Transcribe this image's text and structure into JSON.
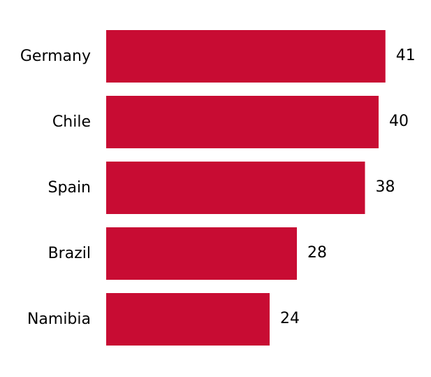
{
  "chart_data": {
    "type": "bar",
    "orientation": "horizontal",
    "categories": [
      "Germany",
      "Chile",
      "Spain",
      "Brazil",
      "Namibia"
    ],
    "values": [
      41,
      40,
      38,
      28,
      24
    ],
    "data_labels": [
      "41",
      "40",
      "38",
      "28",
      "24"
    ],
    "bar_color": "#C80C33",
    "grid": false,
    "axes_visible": false
  }
}
